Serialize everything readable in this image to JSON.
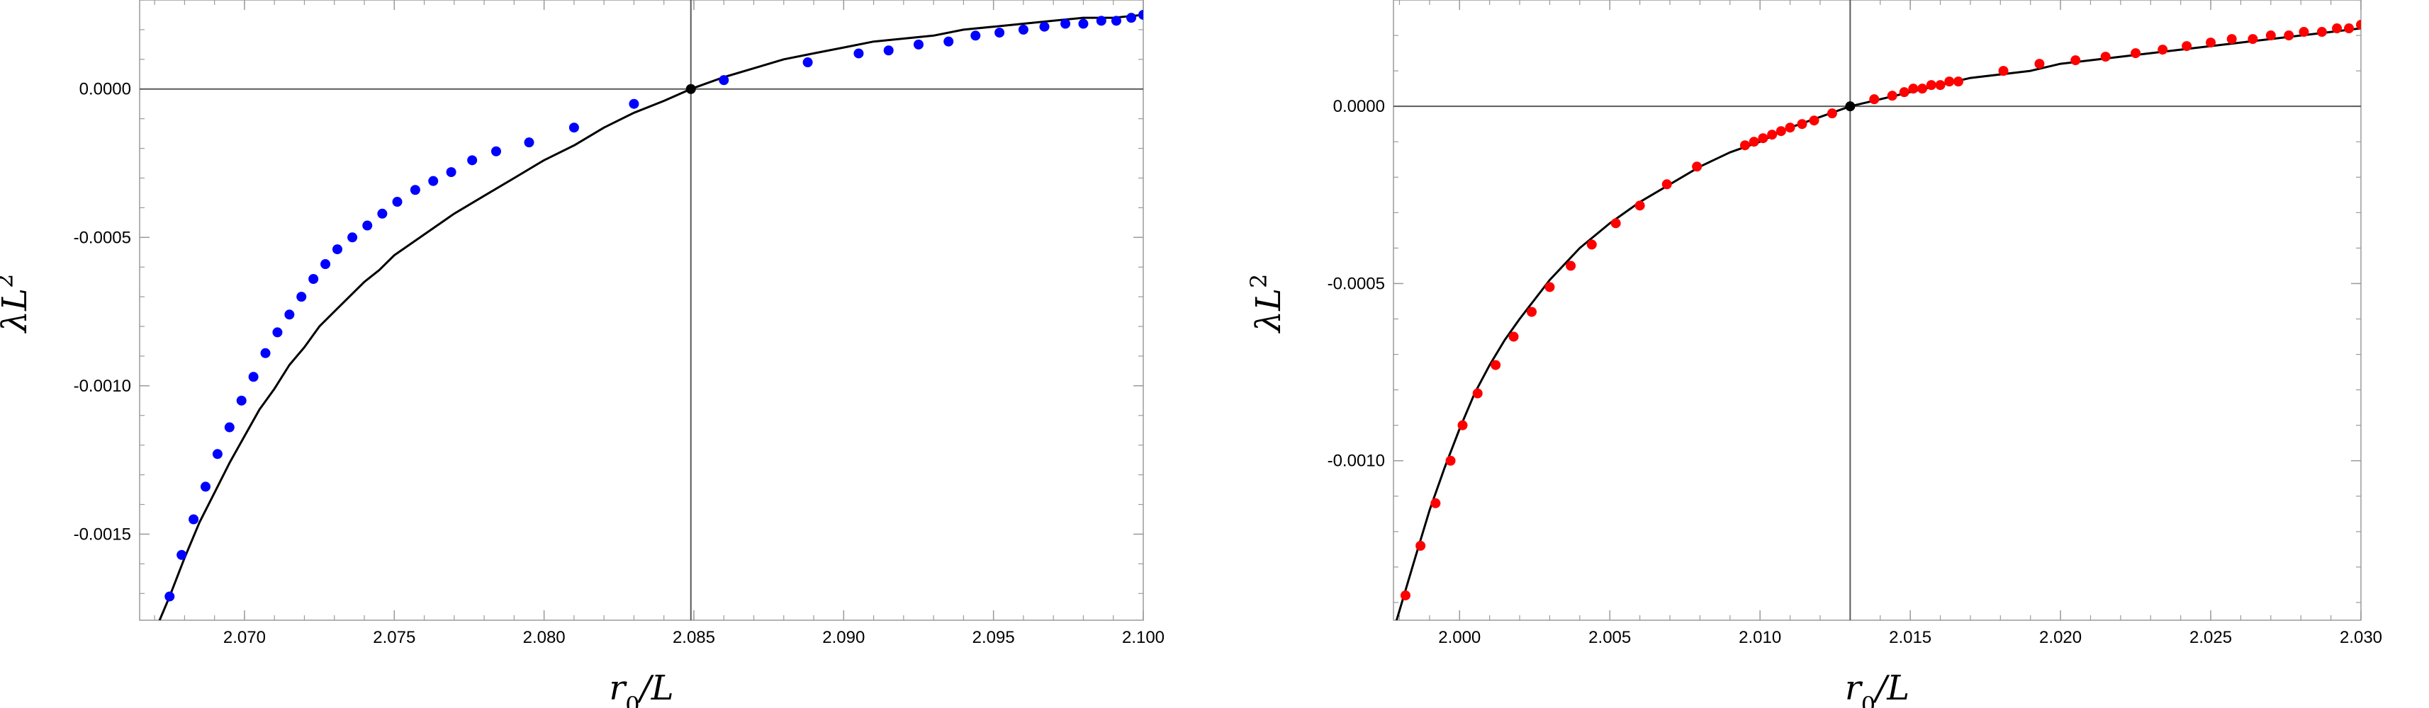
{
  "chart_data": [
    {
      "type": "scatter",
      "id": "left",
      "xlabel": {
        "main": "r",
        "sub": "0",
        "rest": "/L"
      },
      "ylabel": {
        "main": "λL",
        "sup": "2"
      },
      "xlim": [
        2.0665,
        2.1
      ],
      "ylim": [
        -0.00179,
        0.0003
      ],
      "xticks": [
        2.07,
        2.075,
        2.08,
        2.085,
        2.09,
        2.095,
        2.1
      ],
      "xtick_labels": [
        "2.070",
        "2.075",
        "2.080",
        "2.085",
        "2.090",
        "2.095",
        "2.100"
      ],
      "yticks": [
        0,
        -0.0005,
        -0.001,
        -0.0015
      ],
      "ytick_labels": [
        "0.0000",
        "-0.0005",
        "-0.0010",
        "-0.0015"
      ],
      "minor_xtick_step": 0.001,
      "minor_ytick_step": 0.0001,
      "reference_lines": {
        "x": 2.0849,
        "y": 0
      },
      "curve": {
        "color": "#000000",
        "x": [
          2.0665,
          2.067,
          2.0675,
          2.068,
          2.0685,
          2.069,
          2.0695,
          2.07,
          2.0705,
          2.071,
          2.0715,
          2.072,
          2.0725,
          2.073,
          2.0735,
          2.074,
          2.0745,
          2.075,
          2.076,
          2.077,
          2.078,
          2.079,
          2.08,
          2.081,
          2.082,
          2.083,
          2.084,
          2.0849,
          2.086,
          2.087,
          2.088,
          2.089,
          2.09,
          2.091,
          2.092,
          2.093,
          2.094,
          2.095,
          2.096,
          2.097,
          2.098,
          2.099,
          2.1
        ],
        "y": [
          -0.00196,
          -0.00183,
          -0.00171,
          -0.00158,
          -0.00146,
          -0.00136,
          -0.00126,
          -0.00117,
          -0.00108,
          -0.00101,
          -0.00093,
          -0.00087,
          -0.0008,
          -0.00075,
          -0.0007,
          -0.00065,
          -0.00061,
          -0.00056,
          -0.00049,
          -0.00042,
          -0.00036,
          -0.0003,
          -0.00024,
          -0.00019,
          -0.00013,
          -8e-05,
          -4e-05,
          0,
          4e-05,
          7e-05,
          0.0001,
          0.00012,
          0.00014,
          0.00016,
          0.00017,
          0.00018,
          0.0002,
          0.00021,
          0.00022,
          0.00023,
          0.00024,
          0.00024,
          0.00025
        ]
      },
      "series": [
        {
          "color": "#0000ff",
          "x": [
            2.0675,
            2.0679,
            2.0683,
            2.0687,
            2.0691,
            2.0695,
            2.0699,
            2.0703,
            2.0707,
            2.0711,
            2.0715,
            2.0719,
            2.0723,
            2.0727,
            2.0731,
            2.0736,
            2.0741,
            2.0746,
            2.0751,
            2.0757,
            2.0763,
            2.0769,
            2.0776,
            2.0784,
            2.0795,
            2.081,
            2.083,
            2.086,
            2.0888,
            2.0905,
            2.0915,
            2.0925,
            2.0935,
            2.0944,
            2.0952,
            2.096,
            2.0967,
            2.0974,
            2.098,
            2.0986,
            2.0991,
            2.0996,
            2.1
          ],
          "y": [
            -0.00171,
            -0.00157,
            -0.00145,
            -0.00134,
            -0.00123,
            -0.00114,
            -0.00105,
            -0.00097,
            -0.00089,
            -0.00082,
            -0.00076,
            -0.0007,
            -0.00064,
            -0.00059,
            -0.00054,
            -0.0005,
            -0.00046,
            -0.00042,
            -0.00038,
            -0.00034,
            -0.00031,
            -0.00028,
            -0.00024,
            -0.00021,
            -0.00018,
            -0.00013,
            -5e-05,
            3e-05,
            9e-05,
            0.00012,
            0.00013,
            0.00015,
            0.00016,
            0.00018,
            0.00019,
            0.0002,
            0.00021,
            0.00022,
            0.00022,
            0.00023,
            0.00023,
            0.00024,
            0.00025
          ]
        },
        {
          "color": "#000000",
          "x": [
            2.0849
          ],
          "y": [
            0
          ]
        }
      ]
    },
    {
      "type": "scatter",
      "id": "right",
      "xlabel": {
        "main": "r",
        "sub": "0",
        "rest": "/L"
      },
      "ylabel": {
        "main": "λL",
        "sup": "2"
      },
      "xlim": [
        1.9978,
        2.03
      ],
      "ylim": [
        -0.00145,
        0.0003
      ],
      "xticks": [
        2.0,
        2.005,
        2.01,
        2.015,
        2.02,
        2.025,
        2.03
      ],
      "xtick_labels": [
        "2.000",
        "2.005",
        "2.010",
        "2.015",
        "2.020",
        "2.025",
        "2.030"
      ],
      "yticks": [
        0,
        -0.0005,
        -0.001
      ],
      "ytick_labels": [
        "0.0000",
        "-0.0005",
        "-0.0010"
      ],
      "minor_xtick_step": 0.001,
      "minor_ytick_step": 0.0001,
      "reference_lines": {
        "x": 2.013,
        "y": 0
      },
      "curve": {
        "color": "#000000",
        "x": [
          1.9978,
          1.9985,
          1.999,
          1.9995,
          2.0,
          2.0005,
          2.001,
          2.0015,
          2.002,
          2.003,
          2.004,
          2.005,
          2.006,
          2.007,
          2.008,
          2.009,
          2.01,
          2.011,
          2.012,
          2.013,
          2.014,
          2.015,
          2.016,
          2.017,
          2.018,
          2.019,
          2.02,
          2.021,
          2.022,
          2.023,
          2.024,
          2.025,
          2.026,
          2.027,
          2.028,
          2.029,
          2.03
        ],
        "y": [
          -0.00148,
          -0.00128,
          -0.00114,
          -0.00102,
          -0.00091,
          -0.00081,
          -0.00073,
          -0.00066,
          -0.0006,
          -0.00049,
          -0.0004,
          -0.00033,
          -0.00027,
          -0.00022,
          -0.00017,
          -0.00013,
          -0.0001,
          -6e-05,
          -3e-05,
          0,
          2e-05,
          4e-05,
          6e-05,
          8e-05,
          9e-05,
          0.0001,
          0.00012,
          0.00013,
          0.00014,
          0.00015,
          0.00016,
          0.00017,
          0.00018,
          0.00019,
          0.0002,
          0.00021,
          0.00022
        ]
      },
      "series": [
        {
          "color": "#ff0000",
          "x": [
            1.9982,
            1.9987,
            1.9992,
            1.9997,
            2.0001,
            2.0006,
            2.0012,
            2.0018,
            2.0024,
            2.003,
            2.0037,
            2.0044,
            2.0052,
            2.006,
            2.0069,
            2.0079,
            2.0095,
            2.0098,
            2.0101,
            2.0104,
            2.0107,
            2.011,
            2.0114,
            2.0118,
            2.0124,
            2.0138,
            2.0144,
            2.0148,
            2.0151,
            2.0154,
            2.0157,
            2.016,
            2.0163,
            2.0166,
            2.0181,
            2.0193,
            2.0205,
            2.0215,
            2.0225,
            2.0234,
            2.0242,
            2.025,
            2.0257,
            2.0264,
            2.027,
            2.0276,
            2.0281,
            2.0287,
            2.0292,
            2.0296,
            2.03
          ],
          "y": [
            -0.00138,
            -0.00124,
            -0.00112,
            -0.001,
            -0.0009,
            -0.00081,
            -0.00073,
            -0.00065,
            -0.00058,
            -0.00051,
            -0.00045,
            -0.00039,
            -0.00033,
            -0.00028,
            -0.00022,
            -0.00017,
            -0.00011,
            -0.0001,
            -9e-05,
            -8e-05,
            -7e-05,
            -6e-05,
            -5e-05,
            -4e-05,
            -2e-05,
            2e-05,
            3e-05,
            4e-05,
            5e-05,
            5e-05,
            6e-05,
            6e-05,
            7e-05,
            7e-05,
            0.0001,
            0.00012,
            0.00013,
            0.00014,
            0.00015,
            0.00016,
            0.00017,
            0.00018,
            0.00019,
            0.00019,
            0.0002,
            0.0002,
            0.00021,
            0.00021,
            0.00022,
            0.00022,
            0.00023
          ]
        },
        {
          "color": "#000000",
          "x": [
            2.013
          ],
          "y": [
            0
          ]
        }
      ]
    }
  ]
}
